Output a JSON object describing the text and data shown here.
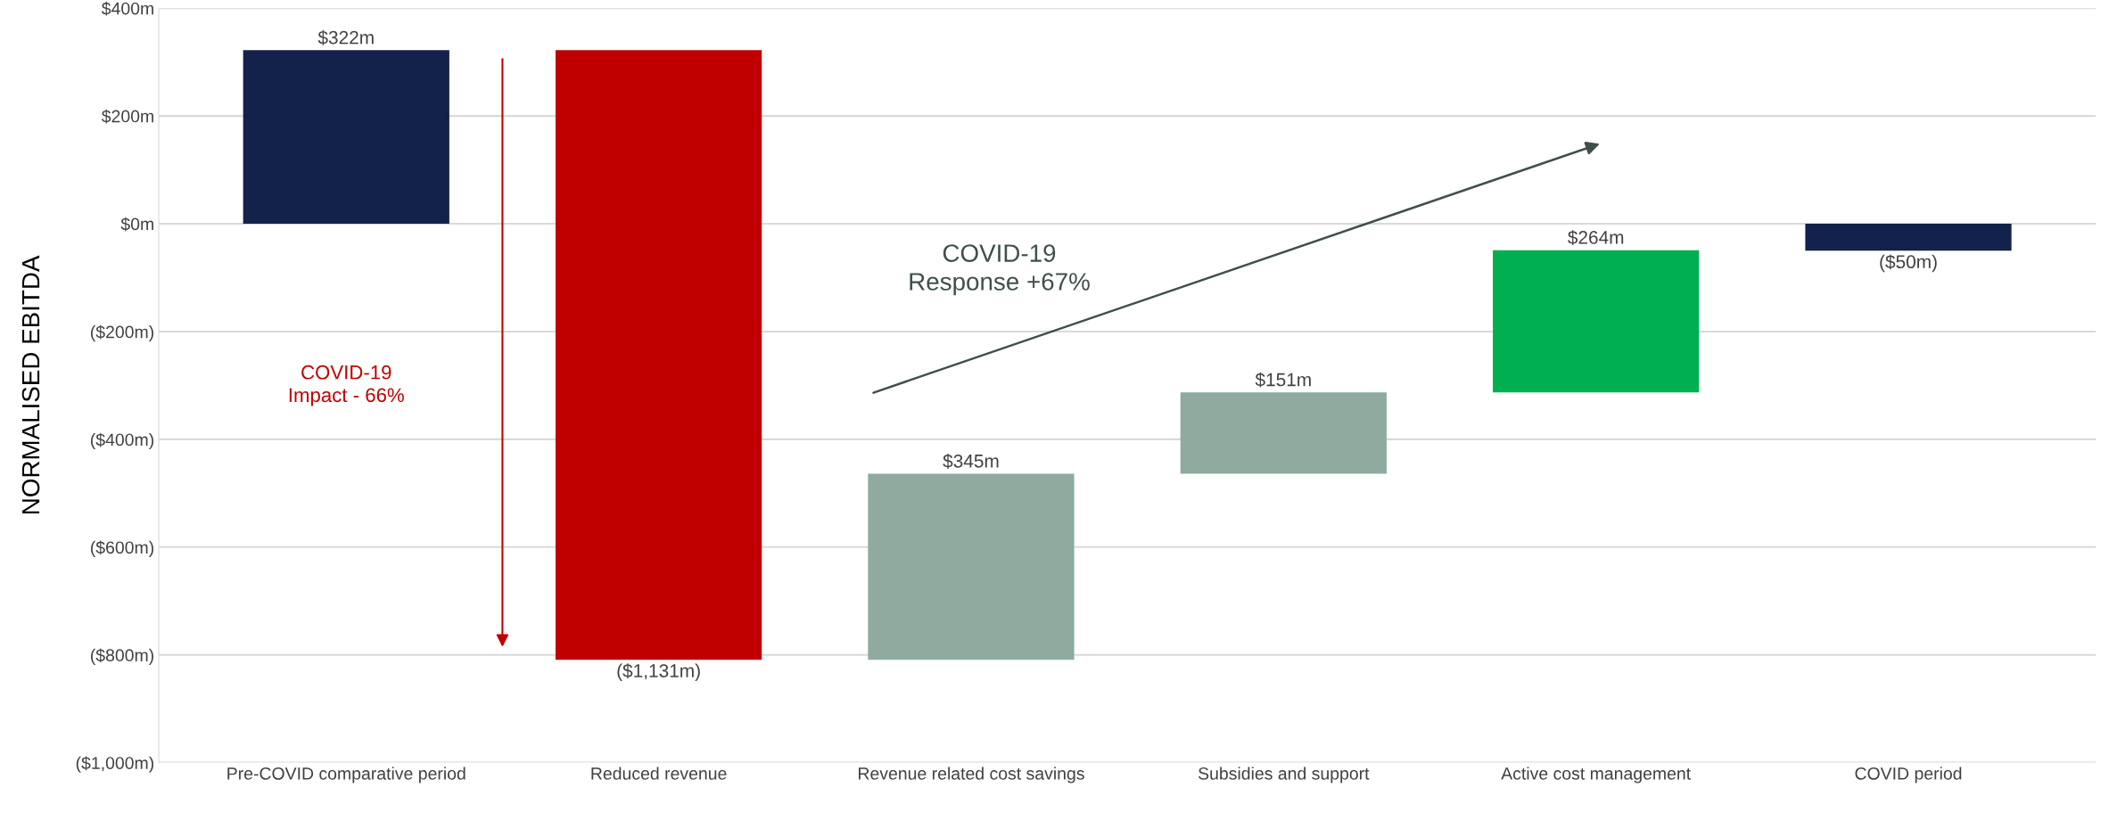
{
  "chart_data": {
    "type": "bar",
    "ylabel": "NORMALISED EBITDA",
    "categories": [
      "Pre-COVID comparative period",
      "Reduced revenue",
      "Revenue related cost savings",
      "Subsidies and support",
      "Active cost management",
      "COVID period"
    ],
    "values": [
      322,
      -1131,
      345,
      151,
      264,
      -50
    ],
    "base": [
      0,
      322,
      -809,
      -464,
      -313,
      0
    ],
    "colors": [
      "#12224a",
      "#c00000",
      "#8faa9e",
      "#8faa9e",
      "#00b050",
      "#12224a"
    ],
    "value_labels": [
      "$322m",
      "($1,131m)",
      "$345m",
      "$151m",
      "$264m",
      "($50m)"
    ],
    "ylim": [
      -1000,
      400
    ],
    "yticks": [
      {
        "value": -1000,
        "label": "($1,000m)"
      },
      {
        "value": -800,
        "label": "($800m)"
      },
      {
        "value": -600,
        "label": "($600m)"
      },
      {
        "value": -400,
        "label": "($400m)"
      },
      {
        "value": -200,
        "label": "($200m)"
      },
      {
        "value": 0,
        "label": "$0m"
      },
      {
        "value": 200,
        "label": "$200m"
      },
      {
        "value": 400,
        "label": "$400m"
      }
    ],
    "grid": "y",
    "annotations": [
      "COVID-19\nImpact - 66%",
      "COVID-19\nResponse +67%"
    ]
  }
}
